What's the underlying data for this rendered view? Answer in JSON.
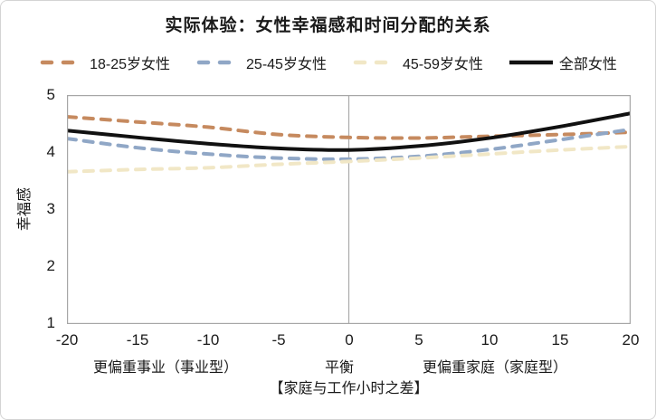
{
  "figure": {
    "background": "#ffffff",
    "border_color": "#d4d4d4"
  },
  "chart_data": {
    "type": "line",
    "title": "实际体验：女性幸福感和时间分配的关系",
    "xlabel": "【家庭与工作小时之差】",
    "ylabel": "幸福感",
    "xlim": [
      -20,
      20
    ],
    "ylim": [
      1,
      5
    ],
    "xticks": [
      -20,
      -15,
      -10,
      -5,
      0,
      5,
      10,
      15,
      20
    ],
    "yticks": [
      5,
      4,
      3,
      2,
      1
    ],
    "grid": "single vertical reference line at x=0",
    "gridline_x": 0,
    "legend_position": "top",
    "x": [
      -20,
      -15,
      -10,
      -5,
      0,
      5,
      10,
      15,
      20
    ],
    "series": [
      {
        "name": "18-25岁女性",
        "color": "#C68A5F",
        "style": "dashed",
        "values": [
          4.62,
          4.53,
          4.44,
          4.31,
          4.26,
          4.25,
          4.28,
          4.31,
          4.35
        ]
      },
      {
        "name": "25-45岁女性",
        "color": "#90A7C6",
        "style": "dashed",
        "values": [
          4.24,
          4.08,
          3.97,
          3.9,
          3.88,
          3.93,
          4.05,
          4.22,
          4.4
        ]
      },
      {
        "name": "45-59岁女性",
        "color": "#F1E7C6",
        "style": "dashed",
        "values": [
          3.66,
          3.7,
          3.73,
          3.79,
          3.84,
          3.9,
          3.97,
          4.04,
          4.1
        ]
      },
      {
        "name": "全部女性",
        "color": "#111111",
        "style": "solid",
        "values": [
          4.38,
          4.26,
          4.15,
          4.07,
          4.04,
          4.11,
          4.25,
          4.45,
          4.68
        ]
      }
    ],
    "zone_labels": [
      {
        "text": "更偏重事业（事业型）",
        "anchor_x": -13
      },
      {
        "text": "平衡",
        "anchor_x": 0
      },
      {
        "text": "更偏重家庭（家庭型）",
        "anchor_x": 10.3
      }
    ],
    "axis_color": "#a6a6a6",
    "gridline_color": "#ababab"
  }
}
